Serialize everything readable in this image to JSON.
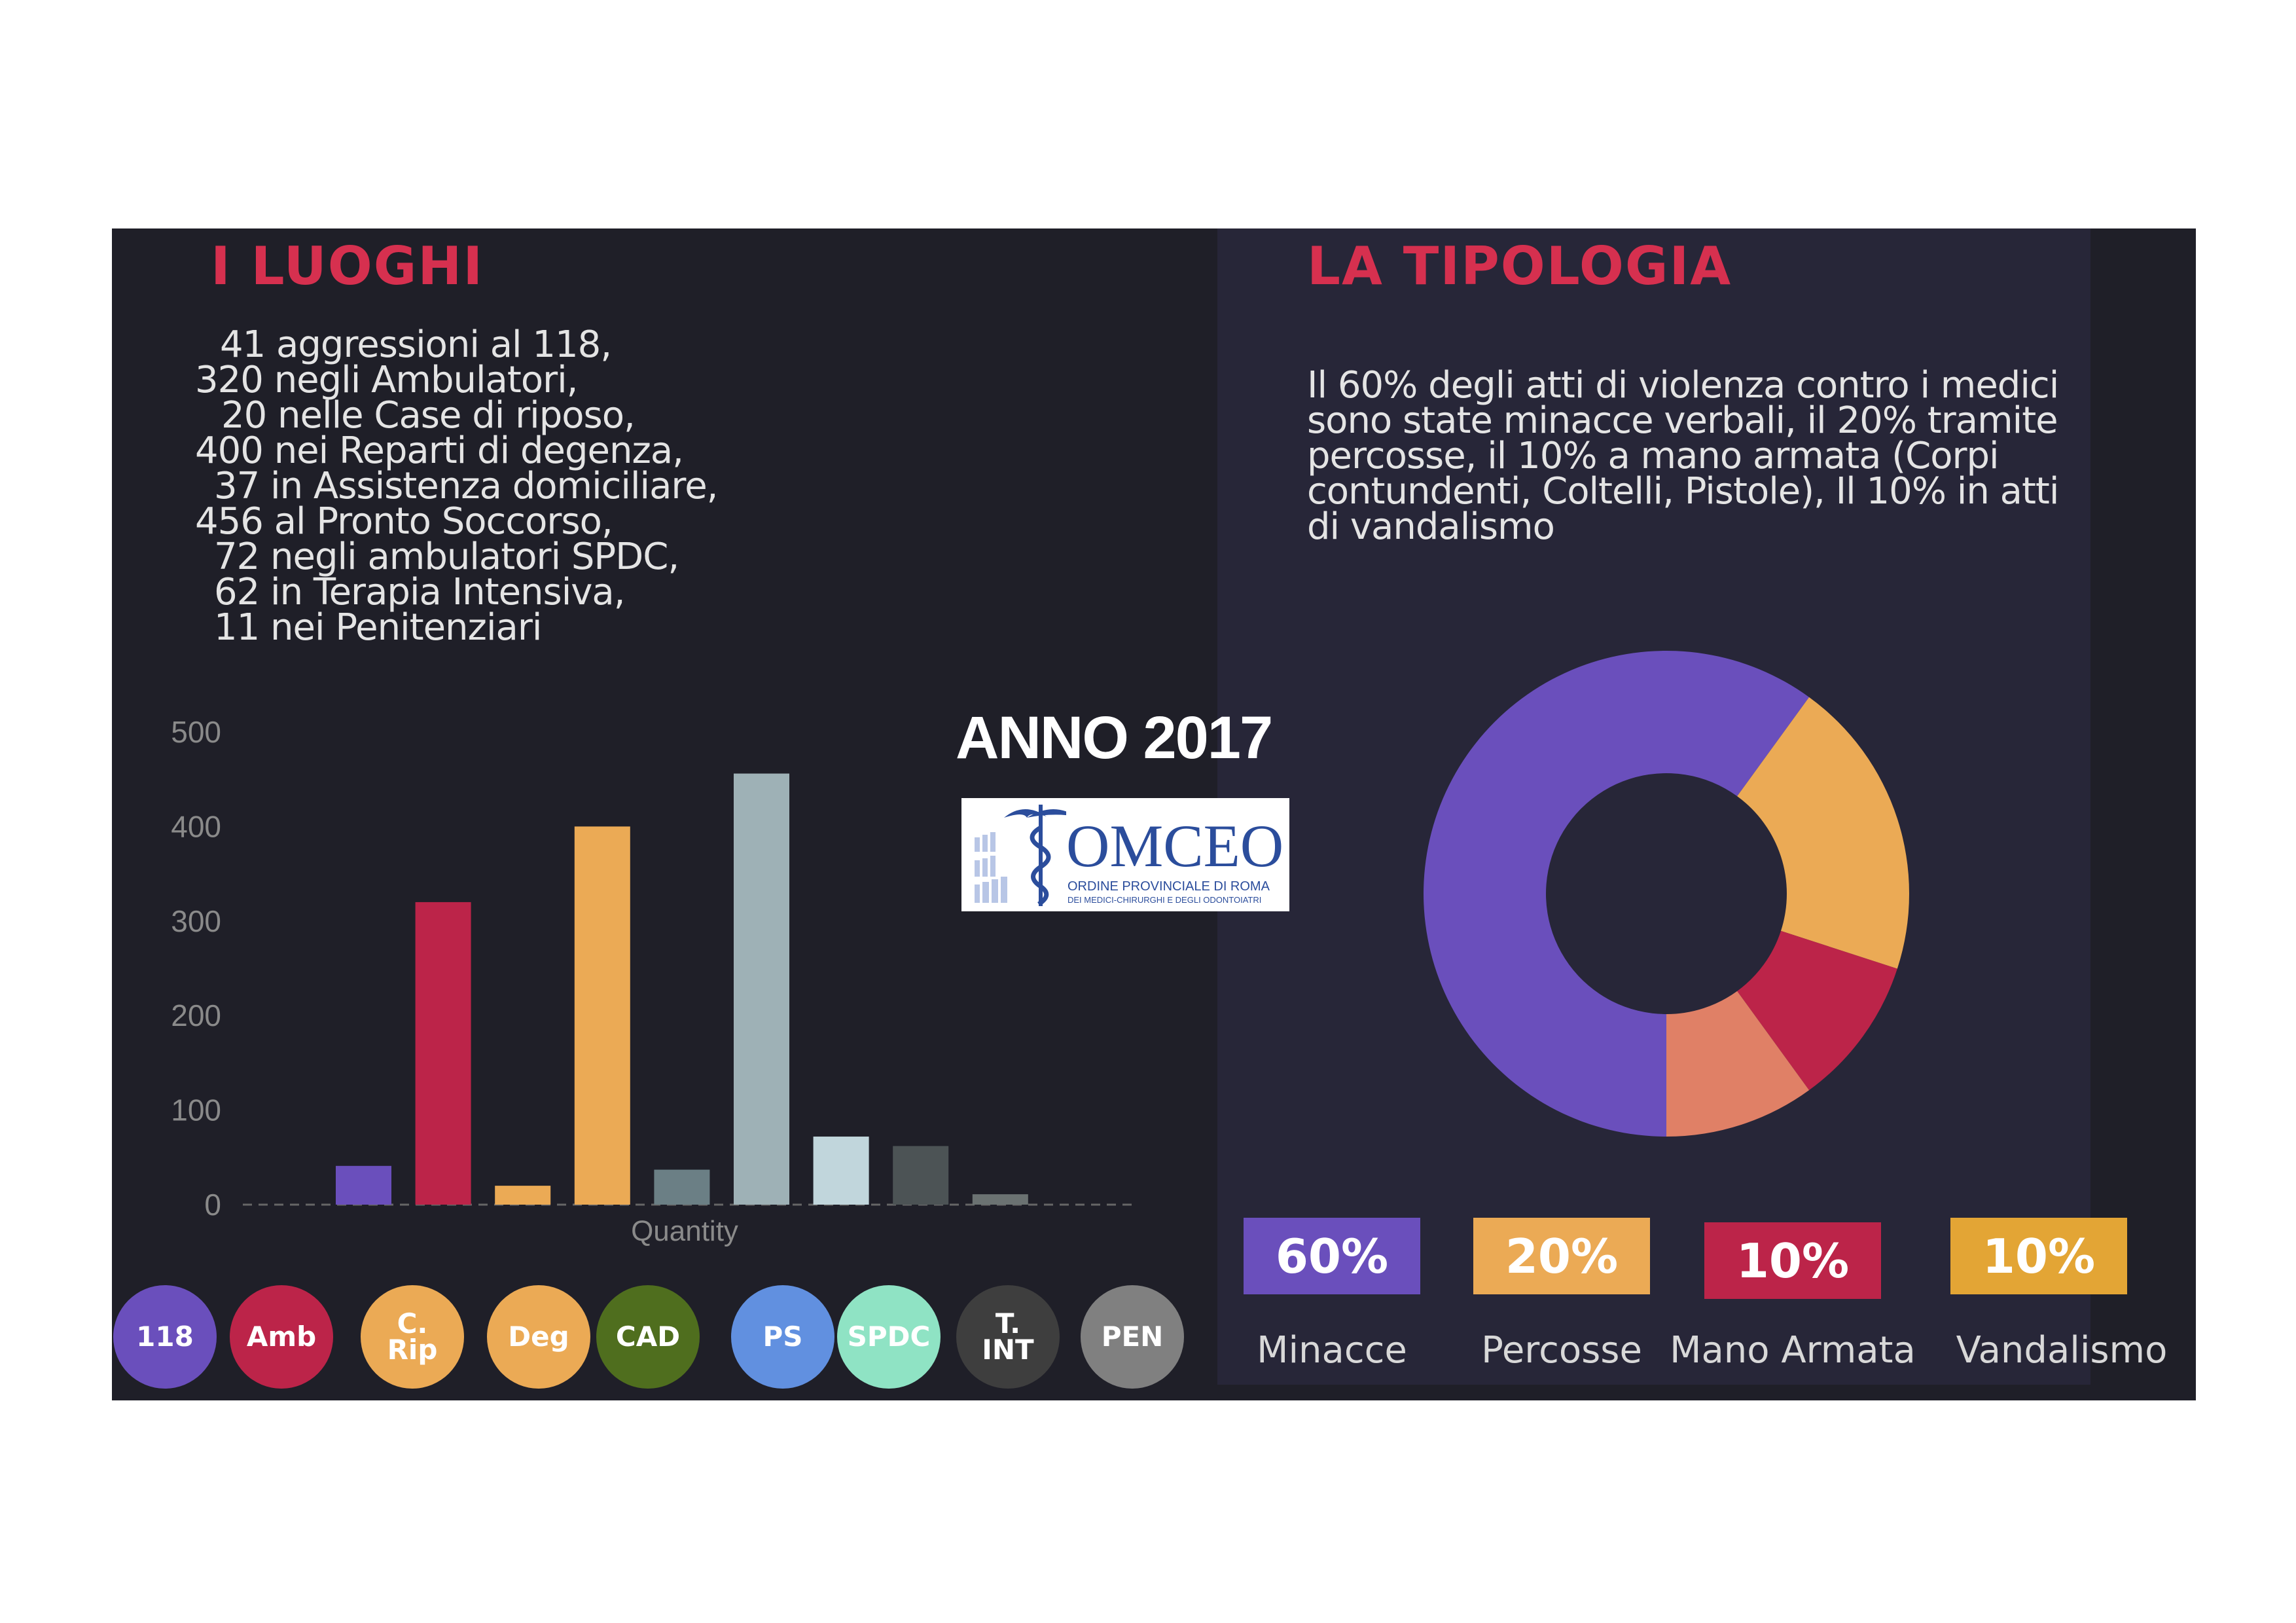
{
  "left": {
    "title": "I LUOGHI",
    "lines": [
      "41 aggressioni al 118,",
      "320 negli Ambulatori,",
      "20 nelle Case di riposo,",
      "400 nei Reparti di degenza,",
      "37 in Assistenza domiciliare,",
      "456 al Pronto Soccorso,",
      "72 negli ambulatori SPDC,",
      "62 in Terapia Intensiva,",
      "11 nei Penitenziari"
    ]
  },
  "right": {
    "title": "LA TIPOLOGIA",
    "text": "Il 60% degli atti di violenza contro i medici sono state minacce verbali, il 20% tramite percosse, il 10% a mano armata (Corpi contundenti, Coltelli, Pistole), Il 10% in atti di vandalismo"
  },
  "center": {
    "anno": "ANNO 2017",
    "logo": {
      "name": "OMCEO",
      "line1": "ORDINE PROVINCIALE DI ROMA",
      "line2": "DEI MEDICI-CHIRURGHI E DEGLI ODONTOIATRI"
    }
  },
  "chart_data": [
    {
      "type": "bar",
      "xlabel": "Quantity",
      "ylabel": "",
      "ylim": [
        0,
        500
      ],
      "yticks": [
        0,
        100,
        200,
        300,
        400,
        500
      ],
      "categories": [
        "118",
        "Amb",
        "C. Rip",
        "Deg",
        "CAD",
        "PS",
        "SPDC",
        "T. INT",
        "PEN"
      ],
      "values": [
        41,
        320,
        20,
        400,
        37,
        456,
        72,
        62,
        11
      ],
      "colors": [
        "#6a4fbc",
        "#bc2449",
        "#ebaa55",
        "#ebaa55",
        "#6b7f85",
        "#9eb1b6",
        "#c1d6dc",
        "#4c5355",
        "#6b7272"
      ],
      "legend_colors": [
        "#6a4fbc",
        "#bc2449",
        "#ebaa55",
        "#ebaa55",
        "#4f6e1e",
        "#6190e0",
        "#8fe3c4",
        "#3e3e3e",
        "#808080"
      ]
    },
    {
      "type": "pie",
      "donut": true,
      "labels": [
        "Minacce",
        "Percosse",
        "Mano Armata",
        "Vandalismo"
      ],
      "values": [
        60,
        20,
        10,
        10
      ],
      "value_labels": [
        "60%",
        "20%",
        "10%",
        "10%"
      ],
      "colors": [
        "#6a4fbc",
        "#ebaa55",
        "#bc2449",
        "#e08066"
      ],
      "box_colors": [
        "#6a4fbc",
        "#ebaa55",
        "#bc2449",
        "#e3a535"
      ]
    }
  ]
}
